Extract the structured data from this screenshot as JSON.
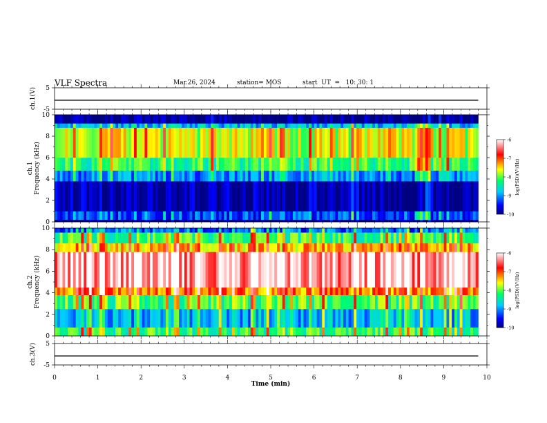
{
  "header": {
    "title": "VLF Spectra",
    "date": "Mar.26, 2024",
    "station": "station= MOS",
    "start": "start  UT  =   10: 30: 1"
  },
  "chart_data": [
    {
      "type": "line",
      "panel": "ch1-voltage",
      "ylabel": "ch.1(V)",
      "xlim": [
        0,
        10
      ],
      "ylim": [
        -5,
        5
      ],
      "yticks": [
        "5",
        "-5"
      ],
      "series": [
        {
          "x": [
            0,
            9.8
          ],
          "values": [
            -0.8,
            -0.8
          ]
        }
      ]
    },
    {
      "type": "heatmap",
      "panel": "ch1-spectrogram",
      "ylabel": "ch.1\nFrequency (kHz)",
      "xlim": [
        0,
        9.8
      ],
      "ylim": [
        0,
        10
      ],
      "yticks": [
        "0",
        "2",
        "4",
        "6",
        "8",
        "10"
      ],
      "colorbar": {
        "label": "log(PSD)(V²/Hz)",
        "ticks": [
          "-6",
          "-7",
          "-8",
          "-9",
          "-10"
        ],
        "range": [
          -10,
          -6
        ]
      },
      "bands": [
        {
          "f_low": 0,
          "f_high": 0.2,
          "level": -10
        },
        {
          "f_low": 0.2,
          "f_high": 1.0,
          "level": -9.3
        },
        {
          "f_low": 1.0,
          "f_high": 3.8,
          "level": -9.9
        },
        {
          "f_low": 3.8,
          "f_high": 4.8,
          "level": -9.0
        },
        {
          "f_low": 4.8,
          "f_high": 6.0,
          "level": -8.2
        },
        {
          "f_low": 6.0,
          "f_high": 8.8,
          "level": -7.7
        },
        {
          "f_low": 8.8,
          "f_high": 9.2,
          "level": -8.8
        },
        {
          "f_low": 9.2,
          "f_high": 10,
          "level": -10
        }
      ]
    },
    {
      "type": "heatmap",
      "panel": "ch2-spectrogram",
      "ylabel": "ch.2\nFrequency (kHz)",
      "xlim": [
        0,
        9.8
      ],
      "ylim": [
        0,
        10
      ],
      "yticks": [
        "0",
        "2",
        "4",
        "6",
        "8",
        "10"
      ],
      "colorbar": {
        "label": "log(PSD)(V²/Hz)",
        "ticks": [
          "-6",
          "-7",
          "-8",
          "-9",
          "-10"
        ],
        "range": [
          -10,
          -6
        ]
      },
      "bands": [
        {
          "f_low": 0,
          "f_high": 0.8,
          "level": -8.2
        },
        {
          "f_low": 0.8,
          "f_high": 2.5,
          "level": -8.9
        },
        {
          "f_low": 2.5,
          "f_high": 3.8,
          "level": -8.1
        },
        {
          "f_low": 3.8,
          "f_high": 4.5,
          "level": -7.2
        },
        {
          "f_low": 4.5,
          "f_high": 7.8,
          "level": -6.3
        },
        {
          "f_low": 7.8,
          "f_high": 8.6,
          "level": -7.4
        },
        {
          "f_low": 8.6,
          "f_high": 9.6,
          "level": -8.2
        },
        {
          "f_low": 9.6,
          "f_high": 10,
          "level": -9.2
        }
      ]
    },
    {
      "type": "line",
      "panel": "ch3-voltage",
      "ylabel": "ch.3(V)",
      "xlim": [
        0,
        10
      ],
      "ylim": [
        -5,
        5
      ],
      "yticks": [
        "5",
        "-5"
      ],
      "series": [
        {
          "x": [
            0,
            9.8
          ],
          "values": [
            -0.8,
            -0.8
          ]
        }
      ]
    }
  ],
  "xaxis": {
    "label": "Time  (min)",
    "ticks": [
      "0",
      "1",
      "2",
      "3",
      "4",
      "5",
      "6",
      "7",
      "8",
      "9",
      "10"
    ],
    "xlim": [
      0,
      10
    ]
  }
}
